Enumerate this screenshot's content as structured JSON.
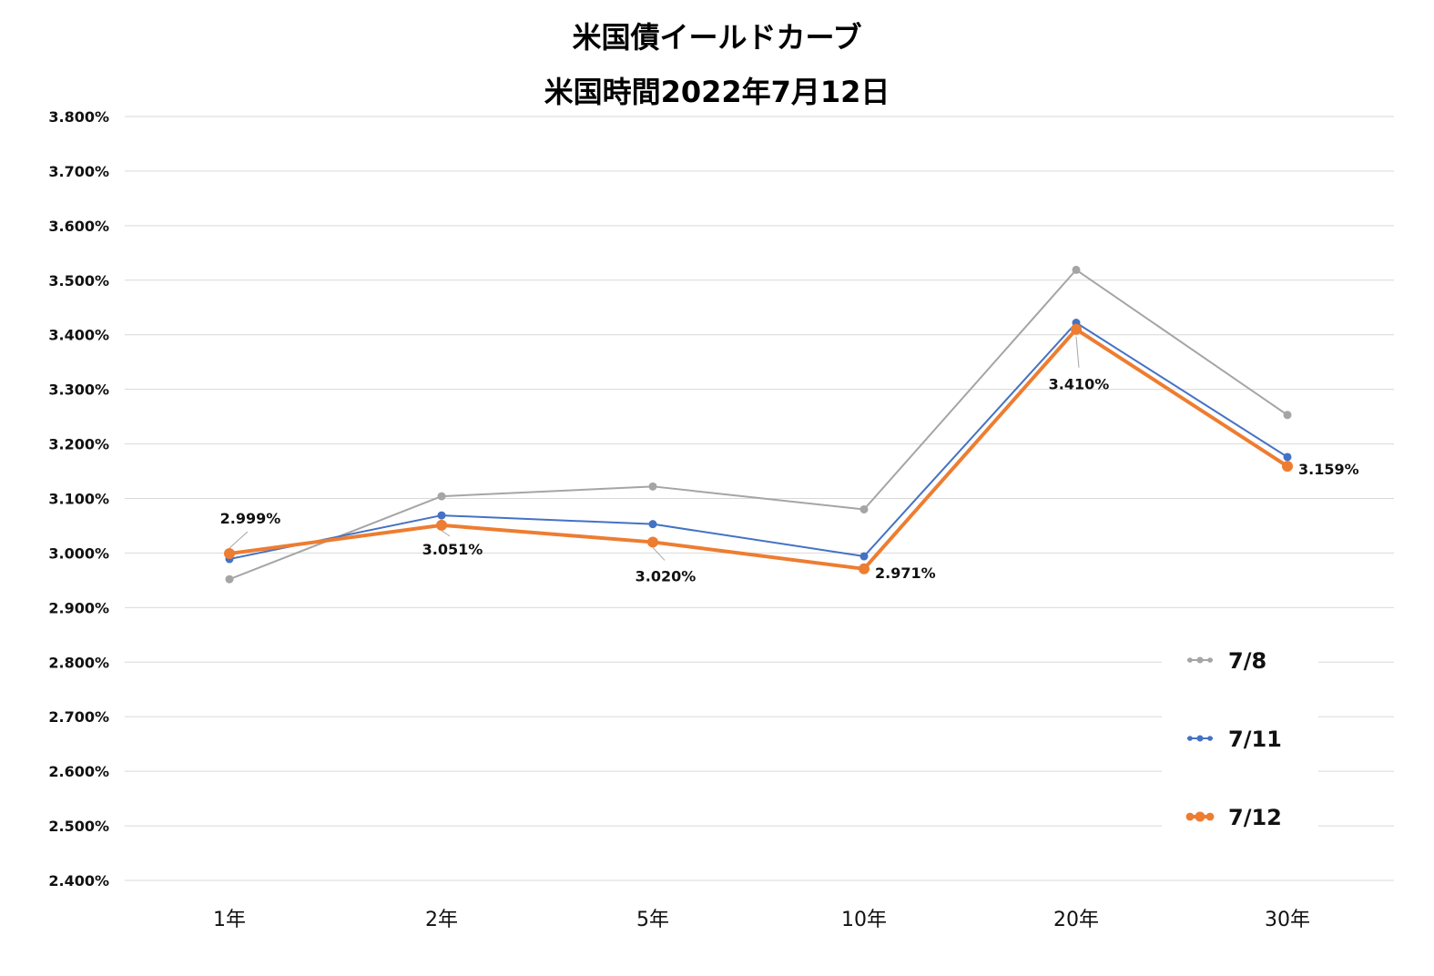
{
  "chart_data": {
    "type": "line",
    "title": "米国債イールドカーブ",
    "subtitle": "米国時間2022年7月12日",
    "categories": [
      "1年",
      "2年",
      "5年",
      "10年",
      "20年",
      "30年"
    ],
    "ylim": [
      2.4,
      3.8
    ],
    "yticks": [
      "3.800%",
      "3.700%",
      "3.600%",
      "3.500%",
      "3.400%",
      "3.300%",
      "3.200%",
      "3.100%",
      "3.000%",
      "2.900%",
      "2.800%",
      "2.700%",
      "2.600%",
      "2.500%",
      "2.400%"
    ],
    "grid": true,
    "legend_position": "bottom-right",
    "series": [
      {
        "name": "7/8",
        "color": "#A5A5A5",
        "values": [
          2.952,
          3.104,
          3.122,
          3.08,
          3.519,
          3.253
        ]
      },
      {
        "name": "7/11",
        "color": "#4472C4",
        "values": [
          2.989,
          3.069,
          3.053,
          2.994,
          3.422,
          3.176
        ]
      },
      {
        "name": "7/12",
        "color": "#ED7D31",
        "values": [
          2.999,
          3.051,
          3.02,
          2.971,
          3.41,
          3.159
        ],
        "labels": [
          "2.999%",
          "3.051%",
          "3.020%",
          "2.971%",
          "3.410%",
          "3.159%"
        ]
      }
    ]
  }
}
